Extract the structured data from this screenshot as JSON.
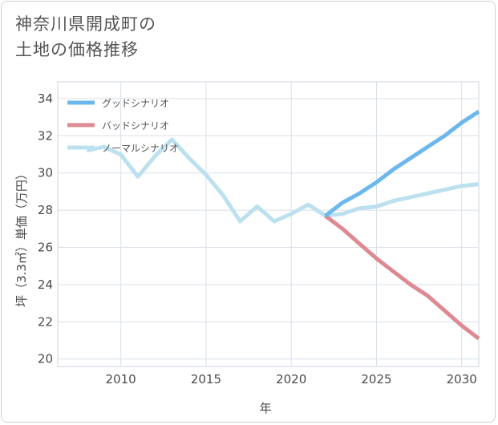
{
  "title": "神奈川県開成町の\n土地の価格推移",
  "chart_data": {
    "type": "line",
    "xlabel": "年",
    "ylabel": "坪（3.3㎡）単価（万円）",
    "xlim": [
      2006.3,
      2031
    ],
    "ylim": [
      19.6,
      34.9
    ],
    "x_ticks": [
      2010,
      2015,
      2020,
      2025,
      2030
    ],
    "y_ticks": [
      20,
      22,
      24,
      26,
      28,
      30,
      32,
      34
    ],
    "grid": true,
    "legend_position": "top-left",
    "series": [
      {
        "name": "グッドシナリオ",
        "color": "#6cb8ec",
        "x": [
          2022,
          2023,
          2024,
          2025,
          2026,
          2027,
          2028,
          2029,
          2030,
          2031
        ],
        "values": [
          27.7,
          28.4,
          28.9,
          29.5,
          30.2,
          30.8,
          31.4,
          32.0,
          32.7,
          33.3
        ]
      },
      {
        "name": "バッドシナリオ",
        "color": "#dd8a93",
        "x": [
          2022,
          2023,
          2024,
          2025,
          2026,
          2027,
          2028,
          2029,
          2030,
          2031
        ],
        "values": [
          27.7,
          27.0,
          26.2,
          25.4,
          24.7,
          24.0,
          23.4,
          22.6,
          21.8,
          21.1
        ]
      },
      {
        "name": "ノーマルシナリオ",
        "color": "#bde0ef",
        "x": [
          2008,
          2009,
          2010,
          2011,
          2012,
          2013,
          2014,
          2015,
          2016,
          2017,
          2018,
          2019,
          2020,
          2021,
          2022,
          2023,
          2024,
          2025,
          2026,
          2027,
          2028,
          2029,
          2030,
          2031
        ],
        "values": [
          31.2,
          31.4,
          31.0,
          29.8,
          30.9,
          31.8,
          30.8,
          29.9,
          28.8,
          27.4,
          28.2,
          27.4,
          27.8,
          28.3,
          27.7,
          27.8,
          28.1,
          28.2,
          28.5,
          28.7,
          28.9,
          29.1,
          29.3,
          29.4
        ]
      }
    ]
  }
}
